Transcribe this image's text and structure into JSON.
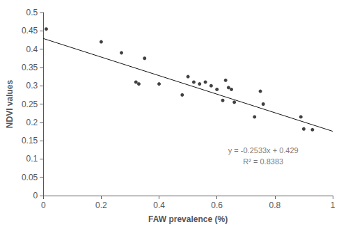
{
  "chart_data": {
    "type": "scatter",
    "xlabel": "FAW prevalence (%)",
    "ylabel": "NDVI values",
    "series": [
      {
        "type": "scatter",
        "color": "#111111",
        "x": [
          0.01,
          0.2,
          0.27,
          0.32,
          0.33,
          0.35,
          0.4,
          0.48,
          0.5,
          0.52,
          0.54,
          0.56,
          0.58,
          0.6,
          0.62,
          0.63,
          0.64,
          0.65,
          0.66,
          0.73,
          0.75,
          0.76,
          0.89,
          0.9,
          0.93
        ],
        "values": [
          0.455,
          0.42,
          0.39,
          0.31,
          0.305,
          0.375,
          0.305,
          0.275,
          0.325,
          0.31,
          0.305,
          0.31,
          0.3,
          0.29,
          0.26,
          0.315,
          0.295,
          0.29,
          0.255,
          0.215,
          0.285,
          0.25,
          0.215,
          0.182,
          0.18
        ]
      },
      {
        "type": "line",
        "color": "#111111",
        "x": [
          0,
          1.0
        ],
        "values": [
          0.429,
          0.1757
        ]
      }
    ],
    "annotations": [
      {
        "text": "y = -0.2533x + 0.429\nR² = 0.8383",
        "x": 0.76,
        "y": 0.108,
        "color": "#555555"
      }
    ],
    "xlim": [
      0,
      1
    ],
    "ylim": [
      0,
      0.5
    ],
    "xticks": [
      0,
      0.2,
      0.4,
      0.6,
      0.8,
      1.0
    ],
    "yticks": [
      0,
      0.05,
      0.1,
      0.15,
      0.2,
      0.25,
      0.3,
      0.35,
      0.4,
      0.45,
      0.5
    ],
    "grid": false
  }
}
